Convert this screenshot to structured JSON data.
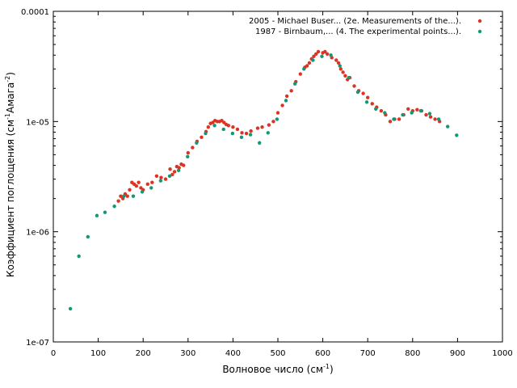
{
  "chart_data": {
    "type": "scatter",
    "xlabel": "Волновое число (см",
    "xlabel_sup": "-1",
    "xlabel_end": ")",
    "ylabel": "Коэффициент поглощения (см",
    "ylabel_sup1": "-1",
    "ylabel_mid": "Амага",
    "ylabel_sup2": "-2",
    "ylabel_end": ")",
    "xlim": [
      0,
      1000
    ],
    "ylim": [
      1e-07,
      0.0001
    ],
    "yscale": "log",
    "grid": false,
    "legend_position": "top-right",
    "x_ticks": [
      {
        "value": 0,
        "label": "0"
      },
      {
        "value": 100,
        "label": "100"
      },
      {
        "value": 200,
        "label": "200"
      },
      {
        "value": 300,
        "label": "300"
      },
      {
        "value": 400,
        "label": "400"
      },
      {
        "value": 500,
        "label": "500"
      },
      {
        "value": 600,
        "label": "600"
      },
      {
        "value": 700,
        "label": "700"
      },
      {
        "value": 800,
        "label": "800"
      },
      {
        "value": 900,
        "label": "900"
      },
      {
        "value": 1000,
        "label": "1000"
      }
    ],
    "y_ticks": [
      {
        "value": 1e-07,
        "label": "1e-07"
      },
      {
        "value": 1e-06,
        "label": "1e-06"
      },
      {
        "value": 1e-05,
        "label": "1e-05"
      },
      {
        "value": 0.0001,
        "label": "0.0001"
      }
    ],
    "series": [
      {
        "name": "2005 - Michael Buser... (2e. Measurements of the...).",
        "color": "#dd3322",
        "x": [
          145,
          150,
          155,
          160,
          165,
          170,
          175,
          180,
          185,
          190,
          195,
          200,
          210,
          220,
          230,
          240,
          250,
          260,
          265,
          270,
          275,
          280,
          285,
          290,
          300,
          310,
          320,
          330,
          340,
          345,
          350,
          355,
          360,
          365,
          370,
          375,
          380,
          385,
          390,
          400,
          410,
          420,
          430,
          440,
          455,
          465,
          480,
          490,
          500,
          510,
          520,
          530,
          540,
          550,
          560,
          565,
          570,
          575,
          580,
          585,
          590,
          600,
          605,
          610,
          620,
          630,
          635,
          640,
          645,
          650,
          655,
          660,
          670,
          680,
          690,
          700,
          710,
          720,
          730,
          740,
          750,
          760,
          770,
          780,
          790,
          800,
          810,
          820,
          830,
          840,
          850,
          860
        ],
        "y": [
          1.9e-06,
          2.1e-06,
          2e-06,
          2.2e-06,
          2.1e-06,
          2.4e-06,
          2.8e-06,
          2.7e-06,
          2.6e-06,
          2.8e-06,
          2.5e-06,
          2.4e-06,
          2.7e-06,
          2.8e-06,
          3.2e-06,
          3.1e-06,
          3e-06,
          3.7e-06,
          3.3e-06,
          3.5e-06,
          3.9e-06,
          3.8e-06,
          4.1e-06,
          4e-06,
          5.2e-06,
          5.8e-06,
          6.6e-06,
          7.2e-06,
          8.1e-06,
          8.9e-06,
          9.6e-06,
          9.8e-06,
          1.02e-05,
          1e-05,
          1e-05,
          1.02e-05,
          9.8e-06,
          9.4e-06,
          9.2e-06,
          8.9e-06,
          8.5e-06,
          7.9e-06,
          7.8e-06,
          8.2e-06,
          8.7e-06,
          8.9e-06,
          9.3e-06,
          1e-05,
          1.2e-05,
          1.4e-05,
          1.7e-05,
          1.9e-05,
          2.3e-05,
          2.7e-05,
          3.1e-05,
          3.2e-05,
          3.4e-05,
          3.7e-05,
          3.9e-05,
          4.1e-05,
          4.3e-05,
          4.2e-05,
          4.3e-05,
          4.1e-05,
          3.8e-05,
          3.6e-05,
          3.4e-05,
          3e-05,
          2.8e-05,
          2.6e-05,
          2.4e-05,
          2.5e-05,
          2.1e-05,
          1.9e-05,
          1.8e-05,
          1.65e-05,
          1.45e-05,
          1.35e-05,
          1.25e-05,
          1.15e-05,
          1e-05,
          1.05e-05,
          1.05e-05,
          1.15e-05,
          1.3e-05,
          1.25e-05,
          1.28e-05,
          1.25e-05,
          1.15e-05,
          1.1e-05,
          1.05e-05,
          1e-05
        ]
      },
      {
        "name": "1987 - Birnbaum,... (4. The experimental points...).",
        "color": "#119977",
        "x": [
          38,
          57,
          77,
          97,
          115,
          136,
          157,
          178,
          198,
          218,
          239,
          259,
          279,
          299,
          319,
          339,
          359,
          379,
          399,
          419,
          439,
          459,
          478,
          498,
          518,
          538,
          558,
          578,
          598,
          618,
          638,
          658,
          678,
          698,
          718,
          738,
          758,
          778,
          798,
          818,
          838,
          858,
          878,
          898
        ],
        "y": [
          2e-07,
          6e-07,
          9e-07,
          1.4e-06,
          1.5e-06,
          1.7e-06,
          2.1e-06,
          2.1e-06,
          2.3e-06,
          2.5e-06,
          2.9e-06,
          3.2e-06,
          3.6e-06,
          4.8e-06,
          6.4e-06,
          7.8e-06,
          9.2e-06,
          8.5e-06,
          7.8e-06,
          7.2e-06,
          7.6e-06,
          6.4e-06,
          7.9e-06,
          1.05e-05,
          1.55e-05,
          2.2e-05,
          3e-05,
          3.6e-05,
          3.9e-05,
          4e-05,
          3.2e-05,
          2.5e-05,
          1.85e-05,
          1.5e-05,
          1.3e-05,
          1.2e-05,
          1.05e-05,
          1.15e-05,
          1.2e-05,
          1.25e-05,
          1.18e-05,
          1.05e-05,
          9e-06,
          7.5e-06
        ]
      }
    ]
  }
}
